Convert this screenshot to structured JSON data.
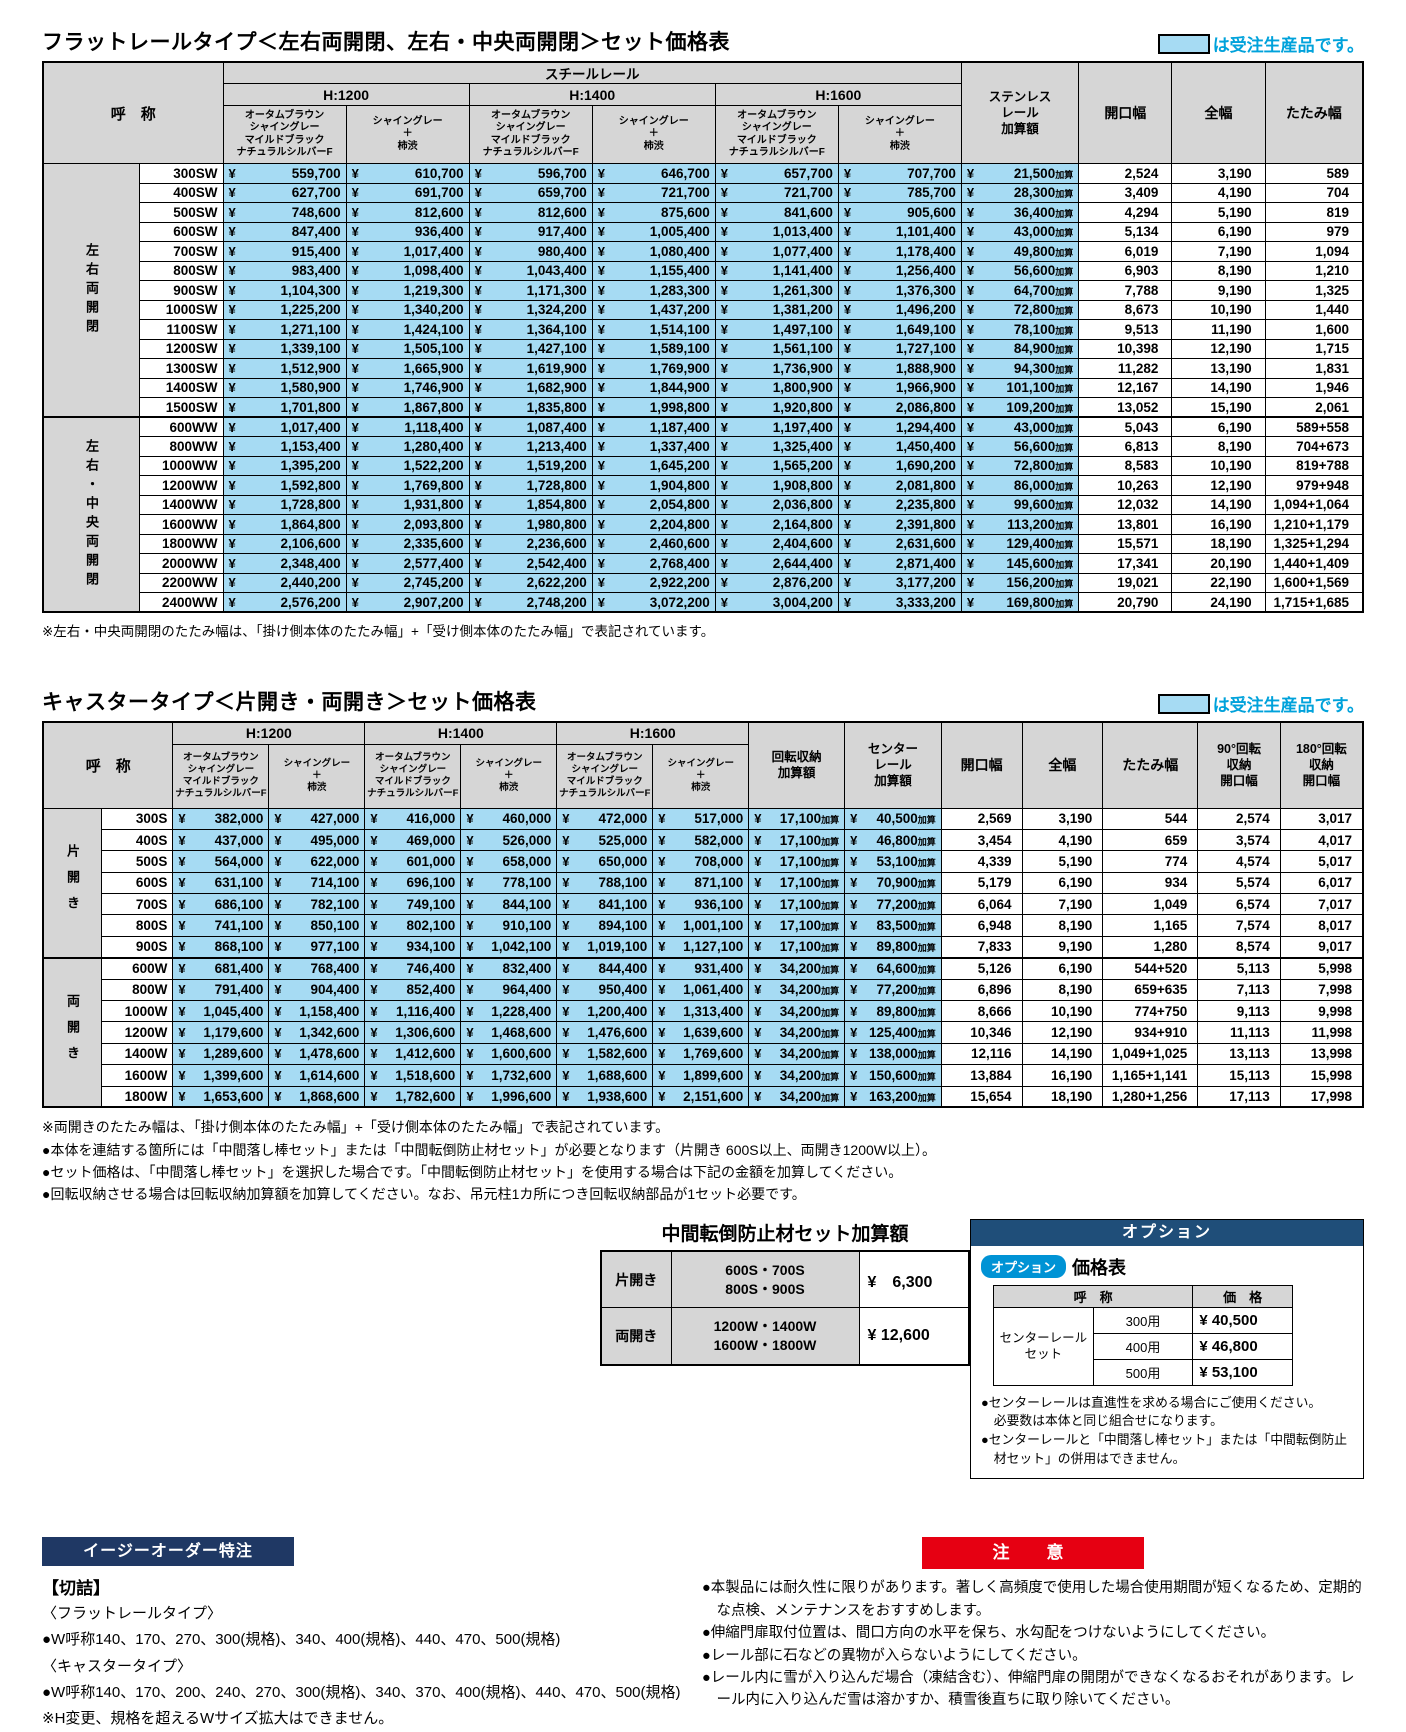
{
  "page": {
    "legend_label": "は受注生産品です。",
    "yen_symbol": "¥",
    "colors": {
      "made_to_order_highlight": "#a6dbf3",
      "legend_text": "#00a2db",
      "option_bar": "#1f4e79",
      "easy_order_bar": "#1f3864",
      "caution_bar": "#e60012",
      "option_badge": "#0093d5",
      "header_gray": "#d6d6d6"
    }
  },
  "table1": {
    "title": "フラットレールタイプ＜左右両開閉、左右・中央両開閉＞セット価格表",
    "surcharge_suffix": "加算",
    "header": {
      "name": "呼　称",
      "steel_rail": "スチールレール",
      "heights": [
        "H:1200",
        "H:1400",
        "H:1600"
      ],
      "color_a": "オータムブラウン\nシャイングレー\nマイルドブラック\nナチュラルシルバーF",
      "color_b": "シャイングレー\n＋\n柿渋",
      "stainless": "ステンレス\nレール\n加算額",
      "opening": "開口幅",
      "full": "全幅",
      "fold": "たたみ幅"
    },
    "groups": [
      {
        "label": "左右両開閉",
        "rows": [
          {
            "name": "300SW",
            "prices": [
              "559,700",
              "610,700",
              "596,700",
              "646,700",
              "657,700",
              "707,700"
            ],
            "stainless": "21,500",
            "opening": "2,524",
            "full": "3,190",
            "fold": "589"
          },
          {
            "name": "400SW",
            "prices": [
              "627,700",
              "691,700",
              "659,700",
              "721,700",
              "721,700",
              "785,700"
            ],
            "stainless": "28,300",
            "opening": "3,409",
            "full": "4,190",
            "fold": "704"
          },
          {
            "name": "500SW",
            "prices": [
              "748,600",
              "812,600",
              "812,600",
              "875,600",
              "841,600",
              "905,600"
            ],
            "stainless": "36,400",
            "opening": "4,294",
            "full": "5,190",
            "fold": "819"
          },
          {
            "name": "600SW",
            "prices": [
              "847,400",
              "936,400",
              "917,400",
              "1,005,400",
              "1,013,400",
              "1,101,400"
            ],
            "stainless": "43,000",
            "opening": "5,134",
            "full": "6,190",
            "fold": "979"
          },
          {
            "name": "700SW",
            "prices": [
              "915,400",
              "1,017,400",
              "980,400",
              "1,080,400",
              "1,077,400",
              "1,178,400"
            ],
            "stainless": "49,800",
            "opening": "6,019",
            "full": "7,190",
            "fold": "1,094"
          },
          {
            "name": "800SW",
            "prices": [
              "983,400",
              "1,098,400",
              "1,043,400",
              "1,155,400",
              "1,141,400",
              "1,256,400"
            ],
            "stainless": "56,600",
            "opening": "6,903",
            "full": "8,190",
            "fold": "1,210"
          },
          {
            "name": "900SW",
            "prices": [
              "1,104,300",
              "1,219,300",
              "1,171,300",
              "1,283,300",
              "1,261,300",
              "1,376,300"
            ],
            "stainless": "64,700",
            "opening": "7,788",
            "full": "9,190",
            "fold": "1,325"
          },
          {
            "name": "1000SW",
            "prices": [
              "1,225,200",
              "1,340,200",
              "1,324,200",
              "1,437,200",
              "1,381,200",
              "1,496,200"
            ],
            "stainless": "72,800",
            "opening": "8,673",
            "full": "10,190",
            "fold": "1,440"
          },
          {
            "name": "1100SW",
            "prices": [
              "1,271,100",
              "1,424,100",
              "1,364,100",
              "1,514,100",
              "1,497,100",
              "1,649,100"
            ],
            "stainless": "78,100",
            "opening": "9,513",
            "full": "11,190",
            "fold": "1,600"
          },
          {
            "name": "1200SW",
            "prices": [
              "1,339,100",
              "1,505,100",
              "1,427,100",
              "1,589,100",
              "1,561,100",
              "1,727,100"
            ],
            "stainless": "84,900",
            "opening": "10,398",
            "full": "12,190",
            "fold": "1,715"
          },
          {
            "name": "1300SW",
            "prices": [
              "1,512,900",
              "1,665,900",
              "1,619,900",
              "1,769,900",
              "1,736,900",
              "1,888,900"
            ],
            "stainless": "94,300",
            "opening": "11,282",
            "full": "13,190",
            "fold": "1,831"
          },
          {
            "name": "1400SW",
            "prices": [
              "1,580,900",
              "1,746,900",
              "1,682,900",
              "1,844,900",
              "1,800,900",
              "1,966,900"
            ],
            "stainless": "101,100",
            "opening": "12,167",
            "full": "14,190",
            "fold": "1,946"
          },
          {
            "name": "1500SW",
            "prices": [
              "1,701,800",
              "1,867,800",
              "1,835,800",
              "1,998,800",
              "1,920,800",
              "2,086,800"
            ],
            "stainless": "109,200",
            "opening": "13,052",
            "full": "15,190",
            "fold": "2,061"
          }
        ]
      },
      {
        "label": "左右・中央両開閉",
        "rows": [
          {
            "name": "600WW",
            "prices": [
              "1,017,400",
              "1,118,400",
              "1,087,400",
              "1,187,400",
              "1,197,400",
              "1,294,400"
            ],
            "stainless": "43,000",
            "opening": "5,043",
            "full": "6,190",
            "fold": "589+558"
          },
          {
            "name": "800WW",
            "prices": [
              "1,153,400",
              "1,280,400",
              "1,213,400",
              "1,337,400",
              "1,325,400",
              "1,450,400"
            ],
            "stainless": "56,600",
            "opening": "6,813",
            "full": "8,190",
            "fold": "704+673"
          },
          {
            "name": "1000WW",
            "prices": [
              "1,395,200",
              "1,522,200",
              "1,519,200",
              "1,645,200",
              "1,565,200",
              "1,690,200"
            ],
            "stainless": "72,800",
            "opening": "8,583",
            "full": "10,190",
            "fold": "819+788"
          },
          {
            "name": "1200WW",
            "prices": [
              "1,592,800",
              "1,769,800",
              "1,728,800",
              "1,904,800",
              "1,908,800",
              "2,081,800"
            ],
            "stainless": "86,000",
            "opening": "10,263",
            "full": "12,190",
            "fold": "979+948"
          },
          {
            "name": "1400WW",
            "prices": [
              "1,728,800",
              "1,931,800",
              "1,854,800",
              "2,054,800",
              "2,036,800",
              "2,235,800"
            ],
            "stainless": "99,600",
            "opening": "12,032",
            "full": "14,190",
            "fold": "1,094+1,064"
          },
          {
            "name": "1600WW",
            "prices": [
              "1,864,800",
              "2,093,800",
              "1,980,800",
              "2,204,800",
              "2,164,800",
              "2,391,800"
            ],
            "stainless": "113,200",
            "opening": "13,801",
            "full": "16,190",
            "fold": "1,210+1,179"
          },
          {
            "name": "1800WW",
            "prices": [
              "2,106,600",
              "2,335,600",
              "2,236,600",
              "2,460,600",
              "2,404,600",
              "2,631,600"
            ],
            "stainless": "129,400",
            "opening": "15,571",
            "full": "18,190",
            "fold": "1,325+1,294"
          },
          {
            "name": "2000WW",
            "prices": [
              "2,348,400",
              "2,577,400",
              "2,542,400",
              "2,768,400",
              "2,644,400",
              "2,871,400"
            ],
            "stainless": "145,600",
            "opening": "17,341",
            "full": "20,190",
            "fold": "1,440+1,409"
          },
          {
            "name": "2200WW",
            "prices": [
              "2,440,200",
              "2,745,200",
              "2,622,200",
              "2,922,200",
              "2,876,200",
              "3,177,200"
            ],
            "stainless": "156,200",
            "opening": "19,021",
            "full": "22,190",
            "fold": "1,600+1,569"
          },
          {
            "name": "2400WW",
            "prices": [
              "2,576,200",
              "2,907,200",
              "2,748,200",
              "3,072,200",
              "3,004,200",
              "3,333,200"
            ],
            "stainless": "169,800",
            "opening": "20,790",
            "full": "24,190",
            "fold": "1,715+1,685"
          }
        ]
      }
    ],
    "footnote": "※左右・中央両開閉のたたみ幅は、「掛け側本体のたたみ幅」+「受け側本体のたたみ幅」で表記されています。"
  },
  "table2": {
    "title": "キャスタータイプ＜片開き・両開き＞セット価格表",
    "surcharge_suffix": "加算",
    "header": {
      "name": "呼　称",
      "heights": [
        "H:1200",
        "H:1400",
        "H:1600"
      ],
      "color_a": "オータムブラウン\nシャイングレー\nマイルドブラック\nナチュラルシルバーF",
      "color_b": "シャイングレー\n＋\n柿渋",
      "rotation": "回転収納\n加算額",
      "center_rail": "センター\nレール\n加算額",
      "opening": "開口幅",
      "full": "全幅",
      "fold": "たたみ幅",
      "r90": "90°回転\n収納\n開口幅",
      "r180": "180°回転\n収納\n開口幅"
    },
    "groups": [
      {
        "label": "片開き",
        "rows": [
          {
            "name": "300S",
            "prices": [
              "382,000",
              "427,000",
              "416,000",
              "460,000",
              "472,000",
              "517,000"
            ],
            "rotation": "17,100",
            "center": "40,500",
            "opening": "2,569",
            "full": "3,190",
            "fold": "544",
            "r90": "2,574",
            "r180": "3,017"
          },
          {
            "name": "400S",
            "prices": [
              "437,000",
              "495,000",
              "469,000",
              "526,000",
              "525,000",
              "582,000"
            ],
            "rotation": "17,100",
            "center": "46,800",
            "opening": "3,454",
            "full": "4,190",
            "fold": "659",
            "r90": "3,574",
            "r180": "4,017"
          },
          {
            "name": "500S",
            "prices": [
              "564,000",
              "622,000",
              "601,000",
              "658,000",
              "650,000",
              "708,000"
            ],
            "rotation": "17,100",
            "center": "53,100",
            "opening": "4,339",
            "full": "5,190",
            "fold": "774",
            "r90": "4,574",
            "r180": "5,017"
          },
          {
            "name": "600S",
            "prices": [
              "631,100",
              "714,100",
              "696,100",
              "778,100",
              "788,100",
              "871,100"
            ],
            "rotation": "17,100",
            "center": "70,900",
            "opening": "5,179",
            "full": "6,190",
            "fold": "934",
            "r90": "5,574",
            "r180": "6,017"
          },
          {
            "name": "700S",
            "prices": [
              "686,100",
              "782,100",
              "749,100",
              "844,100",
              "841,100",
              "936,100"
            ],
            "rotation": "17,100",
            "center": "77,200",
            "opening": "6,064",
            "full": "7,190",
            "fold": "1,049",
            "r90": "6,574",
            "r180": "7,017"
          },
          {
            "name": "800S",
            "prices": [
              "741,100",
              "850,100",
              "802,100",
              "910,100",
              "894,100",
              "1,001,100"
            ],
            "rotation": "17,100",
            "center": "83,500",
            "opening": "6,948",
            "full": "8,190",
            "fold": "1,165",
            "r90": "7,574",
            "r180": "8,017"
          },
          {
            "name": "900S",
            "prices": [
              "868,100",
              "977,100",
              "934,100",
              "1,042,100",
              "1,019,100",
              "1,127,100"
            ],
            "rotation": "17,100",
            "center": "89,800",
            "opening": "7,833",
            "full": "9,190",
            "fold": "1,280",
            "r90": "8,574",
            "r180": "9,017"
          }
        ]
      },
      {
        "label": "両開き",
        "rows": [
          {
            "name": "600W",
            "prices": [
              "681,400",
              "768,400",
              "746,400",
              "832,400",
              "844,400",
              "931,400"
            ],
            "rotation": "34,200",
            "center": "64,600",
            "opening": "5,126",
            "full": "6,190",
            "fold": "544+520",
            "r90": "5,113",
            "r180": "5,998"
          },
          {
            "name": "800W",
            "prices": [
              "791,400",
              "904,400",
              "852,400",
              "964,400",
              "950,400",
              "1,061,400"
            ],
            "rotation": "34,200",
            "center": "77,200",
            "opening": "6,896",
            "full": "8,190",
            "fold": "659+635",
            "r90": "7,113",
            "r180": "7,998"
          },
          {
            "name": "1000W",
            "prices": [
              "1,045,400",
              "1,158,400",
              "1,116,400",
              "1,228,400",
              "1,200,400",
              "1,313,400"
            ],
            "rotation": "34,200",
            "center": "89,800",
            "opening": "8,666",
            "full": "10,190",
            "fold": "774+750",
            "r90": "9,113",
            "r180": "9,998"
          },
          {
            "name": "1200W",
            "prices": [
              "1,179,600",
              "1,342,600",
              "1,306,600",
              "1,468,600",
              "1,476,600",
              "1,639,600"
            ],
            "rotation": "34,200",
            "center": "125,400",
            "opening": "10,346",
            "full": "12,190",
            "fold": "934+910",
            "r90": "11,113",
            "r180": "11,998"
          },
          {
            "name": "1400W",
            "prices": [
              "1,289,600",
              "1,478,600",
              "1,412,600",
              "1,600,600",
              "1,582,600",
              "1,769,600"
            ],
            "rotation": "34,200",
            "center": "138,000",
            "opening": "12,116",
            "full": "14,190",
            "fold": "1,049+1,025",
            "r90": "13,113",
            "r180": "13,998"
          },
          {
            "name": "1600W",
            "prices": [
              "1,399,600",
              "1,614,600",
              "1,518,600",
              "1,732,600",
              "1,688,600",
              "1,899,600"
            ],
            "rotation": "34,200",
            "center": "150,600",
            "opening": "13,884",
            "full": "16,190",
            "fold": "1,165+1,141",
            "r90": "15,113",
            "r180": "15,998"
          },
          {
            "name": "1800W",
            "prices": [
              "1,653,600",
              "1,868,600",
              "1,782,600",
              "1,996,600",
              "1,938,600",
              "2,151,600"
            ],
            "rotation": "34,200",
            "center": "163,200",
            "opening": "15,654",
            "full": "18,190",
            "fold": "1,280+1,256",
            "r90": "17,113",
            "r180": "17,998"
          }
        ]
      }
    ],
    "notes": [
      "※両開きのたたみ幅は、「掛け側本体のたたみ幅」+「受け側本体のたたみ幅」で表記されています。",
      "●本体を連結する箇所には「中間落し棒セット」または「中間転倒防止材セット」が必要となります（片開き 600S以上、両開き1200W以上）。",
      "●セット価格は、「中間落し棒セット」を選択した場合です。「中間転倒防止材セット」を使用する場合は下記の金額を加算してください。",
      "●回転収納させる場合は回転収納加算額を加算してください。なお、吊元柱1カ所につき回転収納部品が1セット必要です。"
    ]
  },
  "midtable": {
    "title": "中間転倒防止材セット加算額",
    "rows": [
      {
        "type": "片開き",
        "models": "600S・700S\n800S・900S",
        "price": "¥　6,300"
      },
      {
        "type": "両開き",
        "models": "1200W・1400W\n1600W・1800W",
        "price": "¥ 12,600"
      }
    ]
  },
  "option": {
    "bar_label": "オプション",
    "badge": "オプション",
    "title": "価格表",
    "table": {
      "name_header": "呼　称",
      "price_header": "価　格",
      "item": "センターレール\nセット",
      "rows": [
        {
          "size": "300用",
          "price": "¥ 40,500"
        },
        {
          "size": "400用",
          "price": "¥ 46,800"
        },
        {
          "size": "500用",
          "price": "¥ 53,100"
        }
      ]
    },
    "notes": [
      "●センターレールは直進性を求める場合にご使用ください。\n必要数は本体と同じ組合せになります。",
      "●センターレールと「中間落し棒セット」または「中間転倒防止材セット」の併用はできません。"
    ]
  },
  "easy_order": {
    "bar_label": "イージーオーダー特注",
    "heading": "【切詰】",
    "lines": [
      "〈フラットレールタイプ〉",
      "●W呼称140、170、270、300(規格)、340、400(規格)、440、470、500(規格)",
      "〈キャスタータイプ〉",
      "●W呼称140、170、200、240、270、300(規格)、340、370、400(規格)、440、470、500(規格)",
      "※H変更、規格を超えるWサイズ拡大はできません。"
    ]
  },
  "caution": {
    "bar_label": "注　意",
    "items": [
      "●本製品には耐久性に限りがあります。著しく高頻度で使用した場合使用期間が短くなるため、定期的な点検、メンテナンスをおすすめします。",
      "●伸縮門扉取付位置は、間口方向の水平を保ち、水勾配をつけないようにしてください。",
      "●レール部に石などの異物が入らないようにしてください。",
      "●レール内に雪が入り込んだ場合（凍結含む）、伸縮門扉の開閉ができなくなるおそれがあります。レール内に入り込んだ雪は溶かすか、積雪後直ちに取り除いてください。"
    ]
  }
}
